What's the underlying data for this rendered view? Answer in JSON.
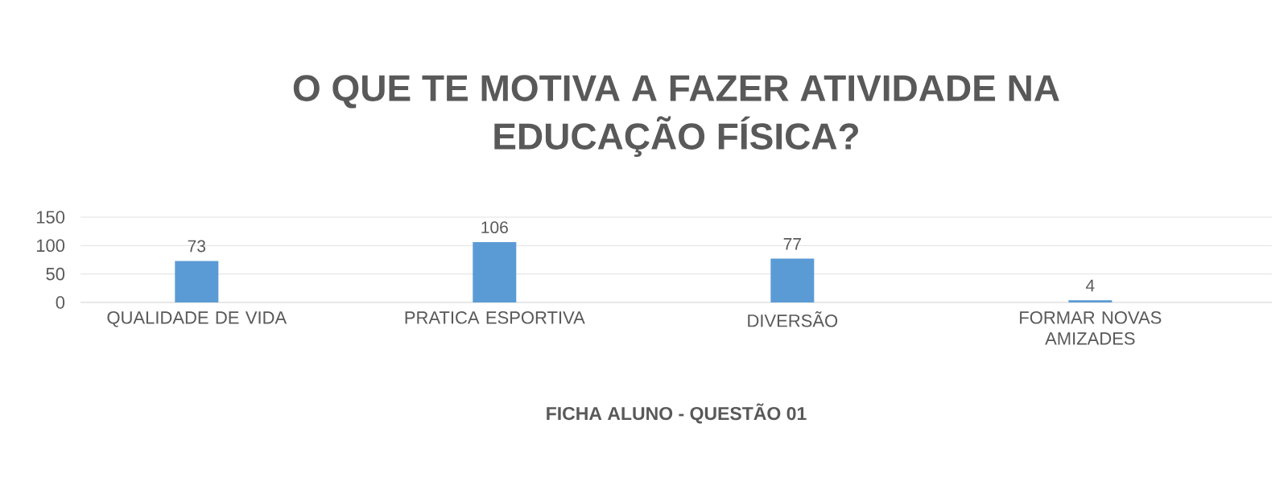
{
  "chart_data": {
    "type": "bar",
    "title": "O QUE TE MOTIVA A FAZER ATIVIDADE NA\nEDUCAÇÃO FÍSICA?",
    "xlabel": "FICHA ALUNO - QUESTÃO 01",
    "categories": [
      "QUALIDADE DE VIDA",
      "PRATICA ESPORTIVA",
      "DIVERSÃO",
      "FORMAR NOVAS AMIZADES"
    ],
    "values": [
      73,
      106,
      77,
      4
    ],
    "color": "#5b9bd5",
    "ylim": [
      0,
      150
    ],
    "yticks": [
      0,
      50,
      100,
      150
    ],
    "grid": "y",
    "data_labels": true
  }
}
